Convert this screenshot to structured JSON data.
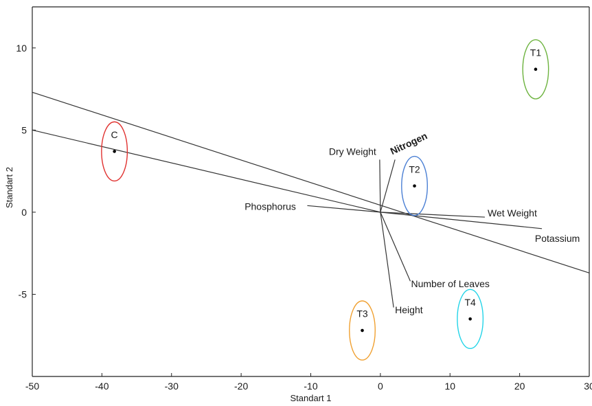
{
  "chart_data": {
    "type": "scatter",
    "title": "",
    "xlabel": "Standart 1",
    "ylabel": "Standart 2",
    "xlim": [
      -50,
      30
    ],
    "ylim": [
      -10,
      12.5
    ],
    "x_ticks": [
      -50,
      -40,
      -30,
      -20,
      -10,
      0,
      10,
      20,
      30
    ],
    "y_ticks": [
      -5,
      0,
      5,
      10
    ],
    "grid": false,
    "series": [
      {
        "name": "C",
        "points": [
          {
            "x": -38.2,
            "y": 3.7
          }
        ],
        "ellipse": {
          "rx": 1.85,
          "ry": 1.8
        },
        "color": "#e0302e"
      },
      {
        "name": "T1",
        "points": [
          {
            "x": 22.3,
            "y": 8.7
          }
        ],
        "ellipse": {
          "rx": 1.85,
          "ry": 1.8
        },
        "color": "#6db33f"
      },
      {
        "name": "T2",
        "points": [
          {
            "x": 4.9,
            "y": 1.6
          }
        ],
        "ellipse": {
          "rx": 1.85,
          "ry": 1.8
        },
        "color": "#4a7fd4"
      },
      {
        "name": "T3",
        "points": [
          {
            "x": -2.6,
            "y": -7.2
          }
        ],
        "ellipse": {
          "rx": 1.85,
          "ry": 1.8
        },
        "color": "#f0a030"
      },
      {
        "name": "T4",
        "points": [
          {
            "x": 12.9,
            "y": -6.5
          }
        ],
        "ellipse": {
          "rx": 1.85,
          "ry": 1.8
        },
        "color": "#22d4e8"
      }
    ],
    "vectors": [
      {
        "name": "Dry Weight",
        "end": [
          -0.1,
          3.2
        ],
        "label": [
          -4,
          3.7
        ],
        "anchor": "middle"
      },
      {
        "name": "Nitrogen",
        "end": [
          2.1,
          3.2
        ],
        "label": [
          1.7,
          3.7
        ],
        "anchor": "start",
        "rotate": -25,
        "bold": true
      },
      {
        "name": "Phosphorus",
        "end": [
          -10.5,
          0.4
        ],
        "label": [
          -19.5,
          0.35
        ],
        "anchor": "start"
      },
      {
        "name": "Wet Weight",
        "end": [
          15,
          -0.3
        ],
        "label": [
          15.4,
          -0.05
        ],
        "anchor": "start"
      },
      {
        "name": "Potassium",
        "end": [
          23.2,
          -1.0
        ],
        "label": [
          22.2,
          -1.6
        ],
        "anchor": "start"
      },
      {
        "name": "Number of Leaves",
        "end": [
          4.3,
          -4.2
        ],
        "label": [
          4.4,
          -4.35
        ],
        "anchor": "start"
      },
      {
        "name": "Height",
        "end": [
          1.9,
          -5.8
        ],
        "label": [
          2.1,
          -5.95
        ],
        "anchor": "start"
      }
    ],
    "lines": [
      {
        "from": [
          -50,
          7.3
        ],
        "to": [
          30,
          -3.7
        ]
      },
      {
        "from": [
          -50,
          5.0
        ],
        "to": [
          0,
          0
        ]
      }
    ]
  },
  "colors": {
    "axis": "#222222",
    "vector": "#333333",
    "point": "#000000"
  }
}
